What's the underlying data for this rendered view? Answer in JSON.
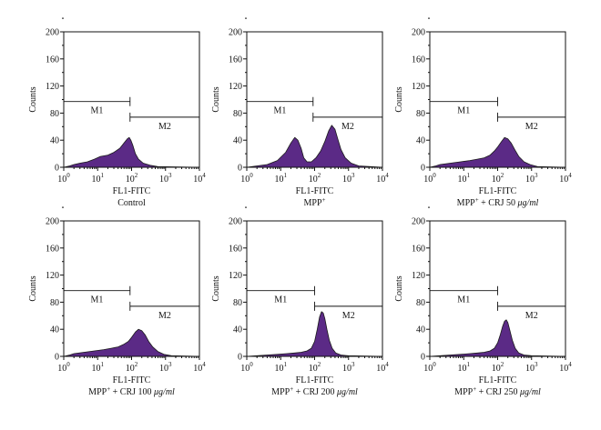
{
  "colors": {
    "fill": "#5b2a86",
    "outline": "#1a1a1a",
    "axis": "#111111"
  },
  "chart_data": [
    {
      "type": "area",
      "xlabel": "FL1-FITC",
      "condition": "Control",
      "ylabel": "Counts",
      "xscale": "log",
      "xlim": [
        1,
        10000
      ],
      "ylim": [
        0,
        200
      ],
      "yticks": [
        "0",
        "40",
        "80",
        "120",
        "160",
        "200"
      ],
      "xticks": [
        "10",
        "10",
        "10",
        "10",
        "10"
      ],
      "xtick_exps": [
        "0",
        "1",
        "2",
        "3",
        "4"
      ],
      "markers": [
        {
          "label": "M1",
          "x_start": 1,
          "x_end": 90,
          "y": 97
        },
        {
          "label": "M2",
          "x_start": 90,
          "x_end": 10000,
          "y": 74
        }
      ],
      "x": [
        1.0,
        1.5,
        2,
        3,
        5,
        8,
        12,
        20,
        30,
        45,
        60,
        75,
        85,
        95,
        110,
        130,
        160,
        220,
        350,
        600,
        10000
      ],
      "values": [
        0,
        2,
        4,
        6,
        8,
        12,
        16,
        18,
        22,
        28,
        36,
        42,
        44,
        40,
        32,
        20,
        12,
        6,
        3,
        1,
        0
      ]
    },
    {
      "type": "area",
      "xlabel": "FL1-FITC",
      "condition": "MPP",
      "condition_sup": "+",
      "ylabel": "Counts",
      "xscale": "log",
      "xlim": [
        1,
        10000
      ],
      "ylim": [
        0,
        200
      ],
      "yticks": [
        "0",
        "40",
        "80",
        "120",
        "160",
        "200"
      ],
      "xticks": [
        "10",
        "10",
        "10",
        "10",
        "10"
      ],
      "xtick_exps": [
        "0",
        "1",
        "2",
        "3",
        "4"
      ],
      "markers": [
        {
          "label": "M1",
          "x_start": 1,
          "x_end": 90,
          "y": 97
        },
        {
          "label": "M2",
          "x_start": 90,
          "x_end": 10000,
          "y": 74
        }
      ],
      "x": [
        1.0,
        2,
        4,
        8,
        14,
        20,
        26,
        32,
        40,
        48,
        60,
        80,
        110,
        150,
        200,
        260,
        320,
        400,
        480,
        600,
        800,
        1200,
        2000,
        10000
      ],
      "values": [
        0,
        2,
        4,
        10,
        22,
        36,
        44,
        40,
        28,
        14,
        8,
        8,
        14,
        24,
        38,
        54,
        62,
        56,
        42,
        26,
        14,
        6,
        2,
        0
      ]
    },
    {
      "type": "area",
      "xlabel": "FL1-FITC",
      "condition": "MPP",
      "condition_sup": "+",
      "condition_post": " + CRJ 50 ",
      "condition_unit": "μg/ml",
      "ylabel": "Counts",
      "xscale": "log",
      "xlim": [
        1,
        10000
      ],
      "ylim": [
        0,
        200
      ],
      "yticks": [
        "0",
        "40",
        "80",
        "120",
        "160",
        "200"
      ],
      "xticks": [
        "10",
        "10",
        "10",
        "10",
        "10"
      ],
      "xtick_exps": [
        "0",
        "1",
        "2",
        "3",
        "4"
      ],
      "markers": [
        {
          "label": "M1",
          "x_start": 1,
          "x_end": 100,
          "y": 97
        },
        {
          "label": "M2",
          "x_start": 100,
          "x_end": 10000,
          "y": 74
        }
      ],
      "x": [
        1.0,
        1.5,
        2,
        4,
        8,
        15,
        25,
        40,
        60,
        80,
        100,
        130,
        160,
        200,
        250,
        320,
        420,
        600,
        900,
        1500,
        10000
      ],
      "values": [
        0,
        2,
        4,
        6,
        8,
        10,
        12,
        14,
        18,
        24,
        30,
        38,
        44,
        42,
        36,
        26,
        16,
        8,
        4,
        1,
        0
      ]
    },
    {
      "type": "area",
      "xlabel": "FL1-FITC",
      "condition": "MPP",
      "condition_sup": "+",
      "condition_post": " + CRJ 100 ",
      "condition_unit": "μg/ml",
      "ylabel": "Counts",
      "xscale": "log",
      "xlim": [
        1,
        10000
      ],
      "ylim": [
        0,
        200
      ],
      "yticks": [
        "0",
        "40",
        "80",
        "120",
        "160",
        "200"
      ],
      "xticks": [
        "10",
        "10",
        "10",
        "10",
        "10"
      ],
      "xtick_exps": [
        "0",
        "1",
        "2",
        "3",
        "4"
      ],
      "markers": [
        {
          "label": "M1",
          "x_start": 1,
          "x_end": 90,
          "y": 97
        },
        {
          "label": "M2",
          "x_start": 90,
          "x_end": 10000,
          "y": 74
        }
      ],
      "x": [
        1.0,
        1.5,
        2,
        4,
        8,
        15,
        25,
        40,
        60,
        80,
        100,
        130,
        160,
        200,
        250,
        320,
        420,
        600,
        900,
        1500,
        10000
      ],
      "values": [
        0,
        2,
        4,
        6,
        8,
        10,
        12,
        14,
        18,
        22,
        28,
        36,
        40,
        38,
        32,
        22,
        14,
        7,
        3,
        1,
        0
      ]
    },
    {
      "type": "area",
      "xlabel": "FL1-FITC",
      "condition": "MPP",
      "condition_sup": "+",
      "condition_post": " + CRJ 200 ",
      "condition_unit": "μg/ml",
      "ylabel": "Counts",
      "xscale": "log",
      "xlim": [
        1,
        10000
      ],
      "ylim": [
        0,
        200
      ],
      "yticks": [
        "0",
        "40",
        "80",
        "120",
        "160",
        "200"
      ],
      "xticks": [
        "10",
        "10",
        "10",
        "10",
        "10"
      ],
      "xtick_exps": [
        "0",
        "1",
        "2",
        "3",
        "4"
      ],
      "markers": [
        {
          "label": "M1",
          "x_start": 1,
          "x_end": 100,
          "y": 97
        },
        {
          "label": "M2",
          "x_start": 100,
          "x_end": 10000,
          "y": 74
        }
      ],
      "x": [
        1.0,
        2,
        4,
        8,
        15,
        25,
        40,
        60,
        80,
        100,
        120,
        140,
        160,
        180,
        200,
        230,
        270,
        330,
        420,
        600,
        1000,
        10000
      ],
      "values": [
        0,
        1,
        2,
        3,
        4,
        5,
        6,
        8,
        12,
        22,
        40,
        58,
        66,
        64,
        56,
        40,
        24,
        12,
        5,
        2,
        1,
        0
      ]
    },
    {
      "type": "area",
      "xlabel": "FL1-FITC",
      "condition": "MPP",
      "condition_sup": "+",
      "condition_post": " + CRJ 250 ",
      "condition_unit": "μg/ml",
      "ylabel": "Counts",
      "xscale": "log",
      "xlim": [
        1,
        10000
      ],
      "ylim": [
        0,
        200
      ],
      "yticks": [
        "0",
        "40",
        "80",
        "120",
        "160",
        "200"
      ],
      "xticks": [
        "10",
        "10",
        "10",
        "10",
        "10"
      ],
      "xtick_exps": [
        "0",
        "1",
        "2",
        "3",
        "4"
      ],
      "markers": [
        {
          "label": "M1",
          "x_start": 1,
          "x_end": 100,
          "y": 97
        },
        {
          "label": "M2",
          "x_start": 100,
          "x_end": 10000,
          "y": 74
        }
      ],
      "x": [
        1.0,
        2,
        4,
        8,
        15,
        25,
        40,
        60,
        80,
        100,
        120,
        140,
        160,
        180,
        200,
        230,
        270,
        330,
        420,
        600,
        1000,
        10000
      ],
      "values": [
        0,
        1,
        2,
        3,
        4,
        5,
        6,
        8,
        12,
        20,
        32,
        44,
        52,
        54,
        50,
        38,
        24,
        12,
        5,
        2,
        1,
        0
      ]
    }
  ]
}
